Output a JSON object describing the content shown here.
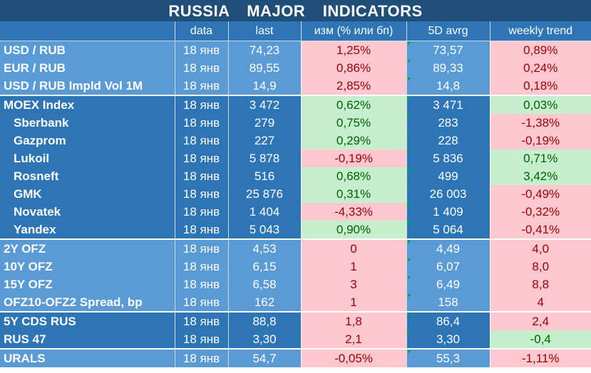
{
  "title": "RUSSIA   MAJOR   INDICATORS",
  "headers": {
    "name": "",
    "date": "data",
    "last": "last",
    "change": "изм (% или бп)",
    "avg": "5D avrg",
    "trend": "weekly trend"
  },
  "colors": {
    "title_bg": "#1f4e78",
    "row_light": "#5b9bd5",
    "row_dark": "#2e75b6",
    "negative_bg": "#ffc7ce",
    "negative_text": "#9c0006",
    "positive_bg": "#c6efce",
    "positive_text": "#006100"
  },
  "rows": [
    {
      "name": "USD / RUB",
      "date": "18 янв",
      "last": "74,23",
      "change": "1,25%",
      "change_sign": "neg",
      "avg": "73,57",
      "trend": "0,89%",
      "trend_sign": "neg"
    },
    {
      "name": "EUR / RUB",
      "date": "18 янв",
      "last": "89,55",
      "change": "0,86%",
      "change_sign": "neg",
      "avg": "89,33",
      "trend": "0,24%",
      "trend_sign": "neg"
    },
    {
      "name": "USD / RUB Impld Vol 1M",
      "date": "18 янв",
      "last": "14,9",
      "change": "2,85%",
      "change_sign": "neg",
      "avg": "14,8",
      "trend": "0,18%",
      "trend_sign": "neg"
    },
    {
      "name": "MOEX Index",
      "date": "18 янв",
      "last": "3 472",
      "change": "0,62%",
      "change_sign": "pos",
      "avg": "3 471",
      "trend": "0,03%",
      "trend_sign": "pos"
    },
    {
      "name": "Sberbank",
      "date": "18 янв",
      "last": "279",
      "change": "0,75%",
      "change_sign": "pos",
      "avg": "283",
      "trend": "-1,38%",
      "trend_sign": "neg"
    },
    {
      "name": "Gazprom",
      "date": "18 янв",
      "last": "227",
      "change": "0,29%",
      "change_sign": "pos",
      "avg": "228",
      "trend": "-0,19%",
      "trend_sign": "neg"
    },
    {
      "name": "Lukoil",
      "date": "18 янв",
      "last": "5 878",
      "change": "-0,19%",
      "change_sign": "neg",
      "avg": "5 836",
      "trend": "0,71%",
      "trend_sign": "pos"
    },
    {
      "name": "Rosneft",
      "date": "18 янв",
      "last": "516",
      "change": "0,68%",
      "change_sign": "pos",
      "avg": "499",
      "trend": "3,42%",
      "trend_sign": "pos"
    },
    {
      "name": "GMK",
      "date": "18 янв",
      "last": "25 876",
      "change": "0,31%",
      "change_sign": "pos",
      "avg": "26 003",
      "trend": "-0,49%",
      "trend_sign": "neg"
    },
    {
      "name": "Novatek",
      "date": "18 янв",
      "last": "1 404",
      "change": "-4,33%",
      "change_sign": "neg",
      "avg": "1 409",
      "trend": "-0,32%",
      "trend_sign": "neg"
    },
    {
      "name": "Yandex",
      "date": "18 янв",
      "last": "5 043",
      "change": "0,90%",
      "change_sign": "pos",
      "avg": "5 064",
      "trend": "-0,41%",
      "trend_sign": "neg"
    },
    {
      "name": "2Y OFZ",
      "date": "18 янв",
      "last": "4,53",
      "change": "0",
      "change_sign": "neg",
      "avg": "4,49",
      "trend": "4,0",
      "trend_sign": "neg"
    },
    {
      "name": "10Y OFZ",
      "date": "18 янв",
      "last": "6,15",
      "change": "1",
      "change_sign": "neg",
      "avg": "6,07",
      "trend": "8,0",
      "trend_sign": "neg"
    },
    {
      "name": "15Y OFZ",
      "date": "18 янв",
      "last": "6,58",
      "change": "3",
      "change_sign": "neg",
      "avg": "6,49",
      "trend": "8,8",
      "trend_sign": "neg"
    },
    {
      "name": "OFZ10-OFZ2 Spread, bp",
      "date": "18 янв",
      "last": "162",
      "change": "1",
      "change_sign": "neg",
      "avg": "158",
      "trend": "4",
      "trend_sign": "neg"
    },
    {
      "name": "5Y CDS RUS",
      "date": "18 янв",
      "last": "88,8",
      "change": "1,8",
      "change_sign": "neg",
      "avg": "86,4",
      "trend": "2,4",
      "trend_sign": "neg"
    },
    {
      "name": "RUS 47",
      "date": "18 янв",
      "last": "3,30",
      "change": "2,1",
      "change_sign": "neg",
      "avg": "3,30",
      "trend": "-0,4",
      "trend_sign": "pos"
    },
    {
      "name": "URALS",
      "date": "18 янв",
      "last": "54,7",
      "change": "-0,05%",
      "change_sign": "neg",
      "avg": "55,3",
      "trend": "-1,11%",
      "trend_sign": "neg"
    }
  ]
}
